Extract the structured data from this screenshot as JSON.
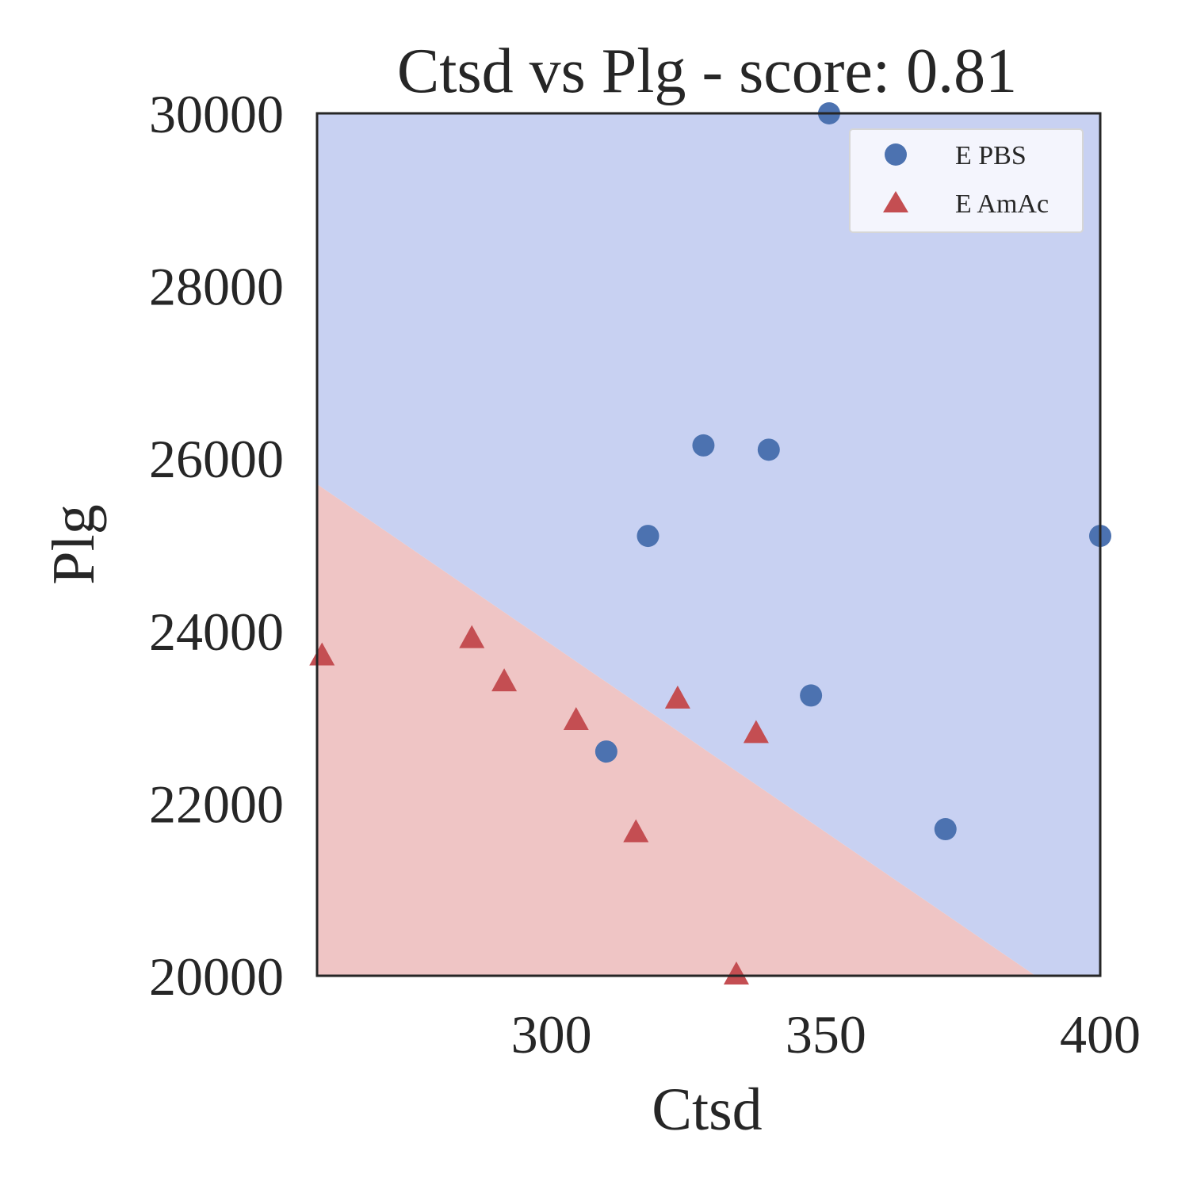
{
  "chart_data": {
    "type": "scatter",
    "title": "Ctsd vs Plg - score: 0.81",
    "xlabel": "Ctsd",
    "ylabel": "Plg",
    "xlim": [
      257.3,
      400
    ],
    "ylim": [
      20000,
      30000
    ],
    "xticks": [
      300,
      350,
      400
    ],
    "yticks": [
      20000,
      22000,
      24000,
      26000,
      28000,
      30000
    ],
    "legend_position": "top-right",
    "grid": false,
    "decision_boundary": {
      "description": "linear classifier regions",
      "points": [
        [
          257.3,
          25700
        ],
        [
          388.2,
          20000
        ]
      ],
      "region_above": "E PBS",
      "region_below": "E AmAc"
    },
    "colors": {
      "region_above": "#c8d1f2",
      "region_below": "#efc5c5",
      "series_circle": "#4c72b0",
      "series_triangle": "#c44e52",
      "frame": "#262626"
    },
    "series": [
      {
        "name": "E PBS",
        "marker": "circle",
        "points": [
          [
            350.6,
            30000
          ],
          [
            327.7,
            26150
          ],
          [
            339.6,
            26100
          ],
          [
            317.6,
            25100
          ],
          [
            400.0,
            25100
          ],
          [
            347.3,
            23250
          ],
          [
            310.0,
            22600
          ],
          [
            371.8,
            21700
          ]
        ]
      },
      {
        "name": "E AmAc",
        "marker": "triangle",
        "points": [
          [
            258.2,
            23700
          ],
          [
            285.5,
            23900
          ],
          [
            291.4,
            23400
          ],
          [
            304.5,
            22950
          ],
          [
            323.0,
            23200
          ],
          [
            337.3,
            22800
          ],
          [
            315.4,
            21650
          ],
          [
            333.7,
            20000
          ]
        ]
      }
    ]
  }
}
